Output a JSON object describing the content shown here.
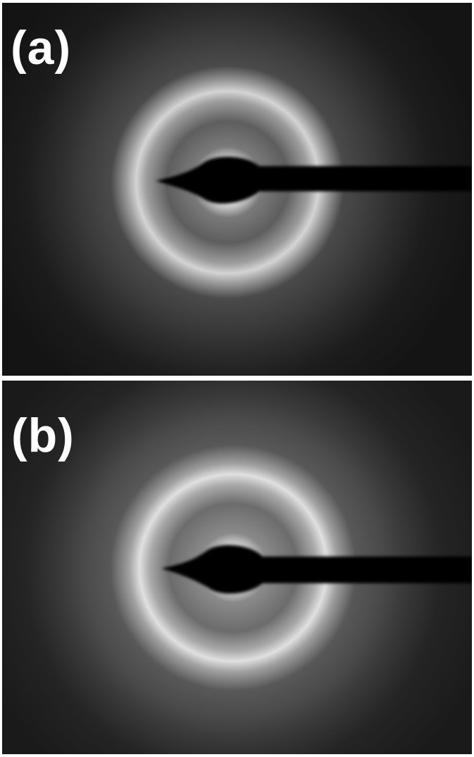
{
  "figure": {
    "panels": [
      {
        "id": "a",
        "label": "(a)",
        "pattern": "diffraction-rings",
        "background_color": "#141414",
        "ring_color": "#ffffff"
      },
      {
        "id": "b",
        "label": "(b)",
        "pattern": "diffraction-rings",
        "background_color": "#1a1a1a",
        "ring_color": "#ffffff"
      }
    ],
    "beam_stop_color": "#000000"
  }
}
